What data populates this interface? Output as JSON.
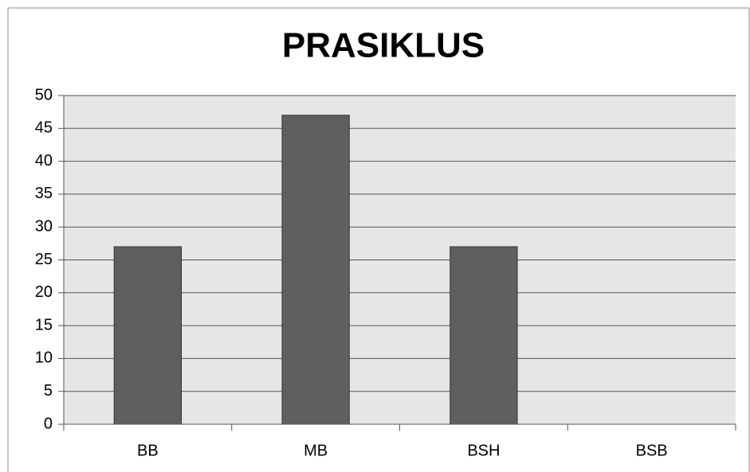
{
  "chart_data": {
    "type": "bar",
    "title": "PRASIKLUS",
    "categories": [
      "BB",
      "MB",
      "BSH",
      "BSB"
    ],
    "values": [
      27,
      47,
      27,
      0
    ],
    "color": "#5f5f5f",
    "ylim": [
      0,
      50
    ],
    "yticks": [
      0,
      5,
      10,
      15,
      20,
      25,
      30,
      35,
      40,
      45,
      50
    ],
    "grid": true
  }
}
